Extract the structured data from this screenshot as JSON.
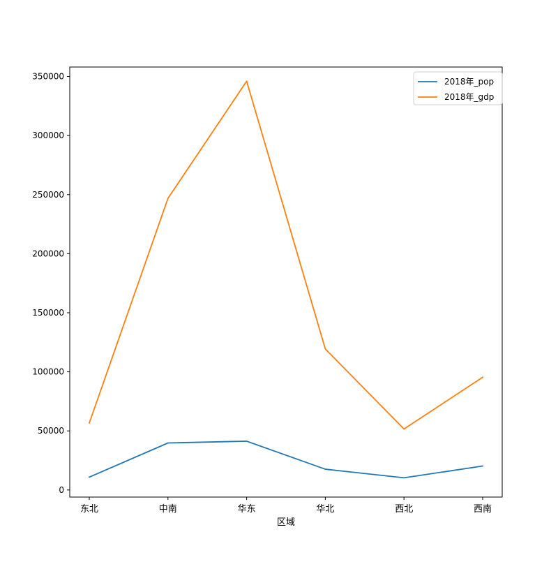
{
  "chart_data": {
    "type": "line",
    "xlabel": "区域",
    "categories": [
      "东北",
      "中南",
      "华东",
      "华北",
      "西北",
      "西南"
    ],
    "ylim": [
      -6000,
      358000
    ],
    "yticks": [
      0,
      50000,
      100000,
      150000,
      200000,
      250000,
      300000,
      350000
    ],
    "ytick_labels": [
      "0",
      "50000",
      "100000",
      "150000",
      "200000",
      "250000",
      "300000",
      "350000"
    ],
    "legend_position": "top-right",
    "grid": false,
    "series": [
      {
        "name": "2018年_pop",
        "color": "#1f77b4",
        "values": [
          10900,
          39800,
          41300,
          17600,
          10300,
          20300
        ]
      },
      {
        "name": "2018年_gdp",
        "color": "#ff7f0e",
        "values": [
          56700,
          246800,
          346000,
          119400,
          51600,
          95400
        ]
      }
    ]
  }
}
